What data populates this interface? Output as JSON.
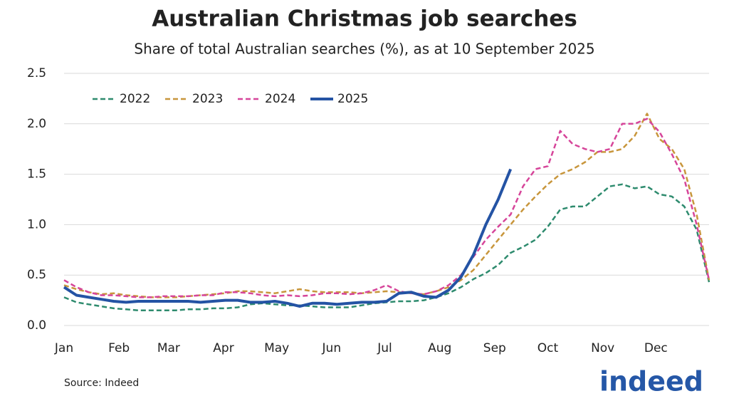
{
  "chart_data": {
    "type": "line",
    "title": "Australian Christmas job searches",
    "subtitle": "Share of total Australian searches (%), as at 10 September 2025",
    "source": "Source: Indeed",
    "logo": "indeed",
    "x": [
      0,
      7,
      14,
      21,
      28,
      35,
      42,
      49,
      56,
      63,
      70,
      77,
      84,
      91,
      98,
      105,
      112,
      119,
      126,
      133,
      140,
      147,
      154,
      161,
      168,
      175,
      182,
      189,
      196,
      203,
      210,
      217,
      224,
      231,
      238,
      245,
      252,
      259,
      266,
      273,
      280,
      287,
      294,
      301,
      308,
      315,
      322,
      329,
      336,
      343,
      350,
      357,
      364
    ],
    "xlim": [
      0,
      364
    ],
    "xticks": [
      {
        "value": 0,
        "label": "Jan"
      },
      {
        "value": 31,
        "label": "Feb"
      },
      {
        "value": 59,
        "label": "Mar"
      },
      {
        "value": 90,
        "label": "Apr"
      },
      {
        "value": 120,
        "label": "May"
      },
      {
        "value": 151,
        "label": "Jun"
      },
      {
        "value": 181,
        "label": "Jul"
      },
      {
        "value": 212,
        "label": "Aug"
      },
      {
        "value": 243,
        "label": "Sep"
      },
      {
        "value": 273,
        "label": "Oct"
      },
      {
        "value": 304,
        "label": "Nov"
      },
      {
        "value": 334,
        "label": "Dec"
      }
    ],
    "ylim": [
      0,
      2.5
    ],
    "yticks": [
      {
        "value": 0,
        "label": "0.0"
      },
      {
        "value": 0.5,
        "label": "0.5"
      },
      {
        "value": 1,
        "label": "1.0"
      },
      {
        "value": 1.5,
        "label": "1.5"
      },
      {
        "value": 2,
        "label": "2.0"
      },
      {
        "value": 2.5,
        "label": "2.5"
      }
    ],
    "grid": true,
    "legend": "top-left",
    "series": [
      {
        "name": "2022",
        "color": "#2e8b6e",
        "dashed": true,
        "values": [
          0.28,
          0.23,
          0.21,
          0.19,
          0.17,
          0.16,
          0.15,
          0.15,
          0.15,
          0.15,
          0.16,
          0.16,
          0.17,
          0.17,
          0.18,
          0.21,
          0.22,
          0.21,
          0.2,
          0.2,
          0.19,
          0.18,
          0.18,
          0.18,
          0.2,
          0.22,
          0.23,
          0.24,
          0.24,
          0.25,
          0.28,
          0.32,
          0.38,
          0.46,
          0.52,
          0.6,
          0.72,
          0.78,
          0.85,
          0.98,
          1.15,
          1.18,
          1.18,
          1.28,
          1.38,
          1.4,
          1.36,
          1.38,
          1.3,
          1.28,
          1.18,
          0.95,
          0.43
        ]
      },
      {
        "name": "2023",
        "color": "#c8963c",
        "dashed": true,
        "values": [
          0.4,
          0.36,
          0.33,
          0.31,
          0.32,
          0.3,
          0.29,
          0.28,
          0.28,
          0.28,
          0.29,
          0.3,
          0.31,
          0.32,
          0.34,
          0.34,
          0.33,
          0.32,
          0.34,
          0.36,
          0.34,
          0.33,
          0.33,
          0.33,
          0.32,
          0.33,
          0.34,
          0.33,
          0.32,
          0.31,
          0.34,
          0.38,
          0.45,
          0.55,
          0.7,
          0.85,
          1.0,
          1.15,
          1.28,
          1.4,
          1.5,
          1.55,
          1.62,
          1.72,
          1.72,
          1.75,
          1.88,
          2.1,
          1.85,
          1.75,
          1.55,
          1.1,
          0.45
        ]
      },
      {
        "name": "2024",
        "color": "#d6459a",
        "dashed": true,
        "values": [
          0.45,
          0.38,
          0.33,
          0.3,
          0.3,
          0.29,
          0.28,
          0.28,
          0.29,
          0.29,
          0.29,
          0.3,
          0.3,
          0.33,
          0.33,
          0.32,
          0.3,
          0.29,
          0.3,
          0.29,
          0.3,
          0.32,
          0.32,
          0.31,
          0.32,
          0.35,
          0.4,
          0.34,
          0.32,
          0.31,
          0.34,
          0.4,
          0.5,
          0.68,
          0.85,
          0.98,
          1.1,
          1.38,
          1.55,
          1.58,
          1.93,
          1.8,
          1.75,
          1.72,
          1.75,
          2.0,
          2.0,
          2.05,
          1.92,
          1.7,
          1.45,
          1.0,
          0.45
        ]
      },
      {
        "name": "2025",
        "color": "#2453a4",
        "dashed": false,
        "values": [
          0.38,
          0.3,
          0.28,
          0.26,
          0.24,
          0.23,
          0.24,
          0.24,
          0.24,
          0.24,
          0.24,
          0.23,
          0.24,
          0.25,
          0.25,
          0.23,
          0.23,
          0.24,
          0.22,
          0.19,
          0.22,
          0.22,
          0.21,
          0.22,
          0.23,
          0.23,
          0.24,
          0.32,
          0.33,
          0.29,
          0.28,
          0.35,
          0.48,
          0.7,
          1.0,
          1.25,
          1.55,
          null,
          null,
          null,
          null,
          null,
          null,
          null,
          null,
          null,
          null,
          null,
          null,
          null,
          null,
          null,
          null
        ]
      }
    ]
  }
}
